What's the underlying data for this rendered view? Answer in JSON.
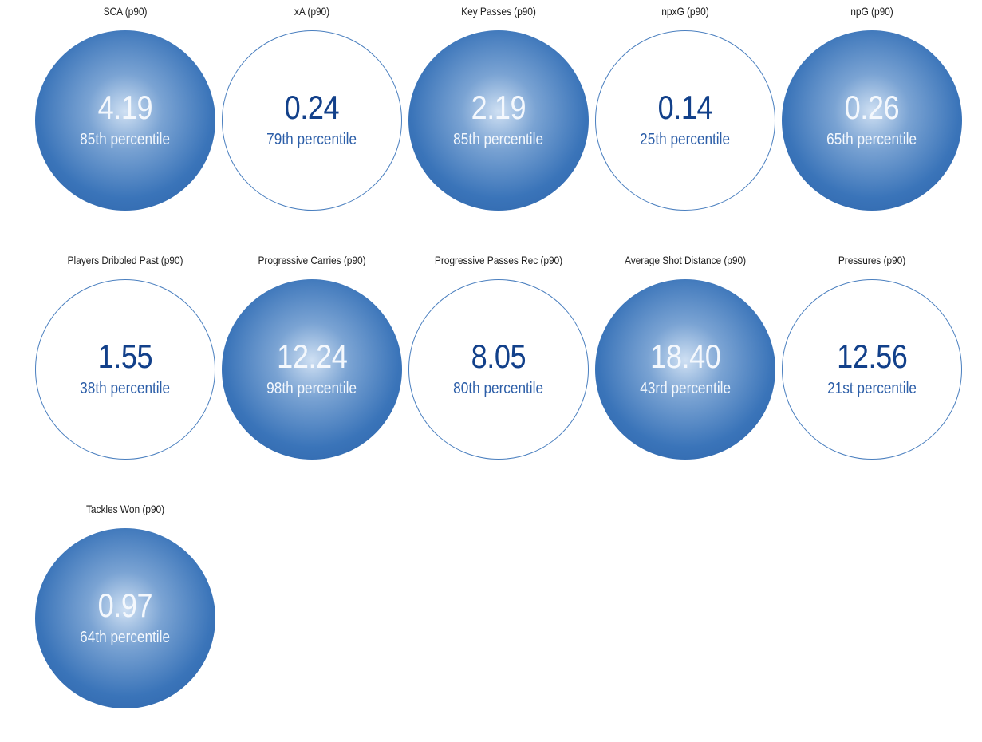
{
  "chart_data": {
    "type": "table",
    "metrics": [
      {
        "label": "SCA (p90)",
        "value": "4.19",
        "percentile": "85th percentile",
        "percentile_num": 85,
        "filled": true
      },
      {
        "label": "xA (p90)",
        "value": "0.24",
        "percentile": "79th percentile",
        "percentile_num": 79,
        "filled": false
      },
      {
        "label": "Key Passes (p90)",
        "value": "2.19",
        "percentile": "85th percentile",
        "percentile_num": 85,
        "filled": true
      },
      {
        "label": "npxG (p90)",
        "value": "0.14",
        "percentile": "25th percentile",
        "percentile_num": 25,
        "filled": false
      },
      {
        "label": "npG (p90)",
        "value": "0.26",
        "percentile": "65th percentile",
        "percentile_num": 65,
        "filled": true
      },
      {
        "label": "Players Dribbled Past (p90)",
        "value": "1.55",
        "percentile": "38th percentile",
        "percentile_num": 38,
        "filled": false
      },
      {
        "label": "Progressive Carries (p90)",
        "value": "12.24",
        "percentile": "98th percentile",
        "percentile_num": 98,
        "filled": true
      },
      {
        "label": "Progressive Passes Rec (p90)",
        "value": "8.05",
        "percentile": "80th percentile",
        "percentile_num": 80,
        "filled": false
      },
      {
        "label": "Average Shot Distance (p90)",
        "value": "18.40",
        "percentile": "43rd percentile",
        "percentile_num": 43,
        "filled": true
      },
      {
        "label": "Pressures (p90)",
        "value": "12.56",
        "percentile": "21st percentile",
        "percentile_num": 21,
        "filled": false
      },
      {
        "label": "Tackles Won (p90)",
        "value": "0.97",
        "percentile": "64th percentile",
        "percentile_num": 64,
        "filled": true
      }
    ],
    "colors": {
      "fill_dark": "#2a5fa5",
      "fill_light": "#cfe0f3",
      "outline": "#4a7fbf",
      "value_text": "#12408a"
    }
  }
}
